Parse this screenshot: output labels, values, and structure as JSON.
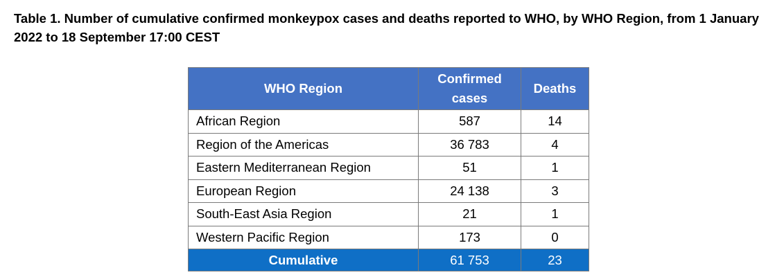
{
  "caption": "Table 1. Number of cumulative confirmed monkeypox cases and deaths reported to WHO, by WHO Region, from 1 January 2022 to 18 September 17:00 CEST",
  "table": {
    "headers": [
      "WHO Region",
      "Confirmed cases",
      "Deaths"
    ],
    "rows": [
      [
        "African Region",
        "587",
        "14"
      ],
      [
        "Region of the Americas",
        "36 783",
        "4"
      ],
      [
        "Eastern Mediterranean Region",
        "51",
        "1"
      ],
      [
        "European Region",
        "24 138",
        "3"
      ],
      [
        "South-East Asia Region",
        "21",
        "1"
      ],
      [
        "Western Pacific Region",
        "173",
        "0"
      ]
    ],
    "total": [
      "Cumulative",
      "61 753",
      "23"
    ]
  },
  "colors": {
    "header_bg": "#4472c4",
    "total_bg": "#0f6fc6",
    "header_text": "#ffffff"
  }
}
